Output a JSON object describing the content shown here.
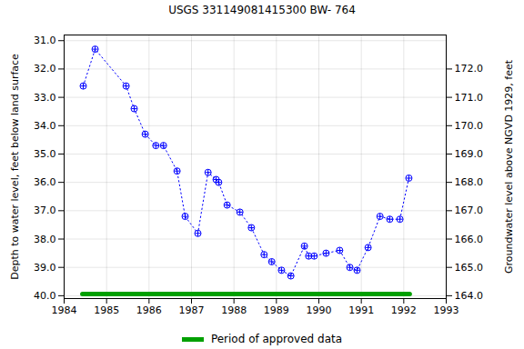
{
  "chart_data": {
    "type": "line",
    "title": "USGS 331149081415300 BW- 764",
    "y_label": "Depth to water level, feet below land surface",
    "y2_label": "Groundwater level above NGVD 1929, feet",
    "xlim": [
      1984,
      1993
    ],
    "xticks": [
      1984,
      1985,
      1986,
      1987,
      1988,
      1989,
      1990,
      1991,
      1992,
      1993
    ],
    "ylim": [
      40.1,
      30.8
    ],
    "yticks": [
      {
        "value": 31,
        "label": "31.0"
      },
      {
        "value": 32,
        "label": "32.0"
      },
      {
        "value": 33,
        "label": "33.0"
      },
      {
        "value": 34,
        "label": "34.0"
      },
      {
        "value": 35,
        "label": "35.0"
      },
      {
        "value": 36,
        "label": "36.0"
      },
      {
        "value": 37,
        "label": "37.0"
      },
      {
        "value": 38,
        "label": "38.0"
      },
      {
        "value": 39,
        "label": "39.0"
      },
      {
        "value": 40,
        "label": "40.0"
      }
    ],
    "y2lim": [
      163.9,
      173.2
    ],
    "y2ticks": [
      {
        "value": 164,
        "label": "164.0"
      },
      {
        "value": 165,
        "label": "165.0"
      },
      {
        "value": 166,
        "label": "166.0"
      },
      {
        "value": 167,
        "label": "167.0"
      },
      {
        "value": 168,
        "label": "168.0"
      },
      {
        "value": 169,
        "label": "169.0"
      },
      {
        "value": 170,
        "label": "170.0"
      },
      {
        "value": 171,
        "label": "171.0"
      },
      {
        "value": 172,
        "label": "172.0"
      }
    ],
    "grid": true,
    "legend": "bottom",
    "series": [
      {
        "x": [
          1984.45,
          1984.73,
          1985.46,
          1985.65,
          1985.91,
          1986.16,
          1986.34,
          1986.66,
          1986.85,
          1987.15,
          1987.39,
          1987.58,
          1987.64,
          1987.84,
          1988.14,
          1988.41,
          1988.71,
          1988.89,
          1989.12,
          1989.34,
          1989.66,
          1989.76,
          1989.89,
          1990.17,
          1990.49,
          1990.73,
          1990.9,
          1991.16,
          1991.44,
          1991.67,
          1991.91,
          1992.12
        ],
        "values": [
          32.6,
          31.3,
          32.6,
          33.4,
          34.3,
          34.7,
          34.7,
          35.6,
          37.2,
          37.8,
          35.65,
          35.9,
          36.0,
          36.8,
          37.05,
          37.6,
          38.55,
          38.8,
          39.1,
          39.3,
          38.25,
          38.6,
          38.6,
          38.5,
          38.4,
          39.0,
          39.1,
          38.3,
          37.2,
          37.3,
          37.3,
          35.85
        ],
        "color": "#0000ff",
        "marker": "circle",
        "line_style": "dotted"
      },
      {
        "name": "Period of approved data",
        "x": [
          1984.43,
          1992.14
        ],
        "values": [
          39.94,
          39.94
        ],
        "color": "#00a000",
        "line_style": "solid"
      }
    ]
  }
}
